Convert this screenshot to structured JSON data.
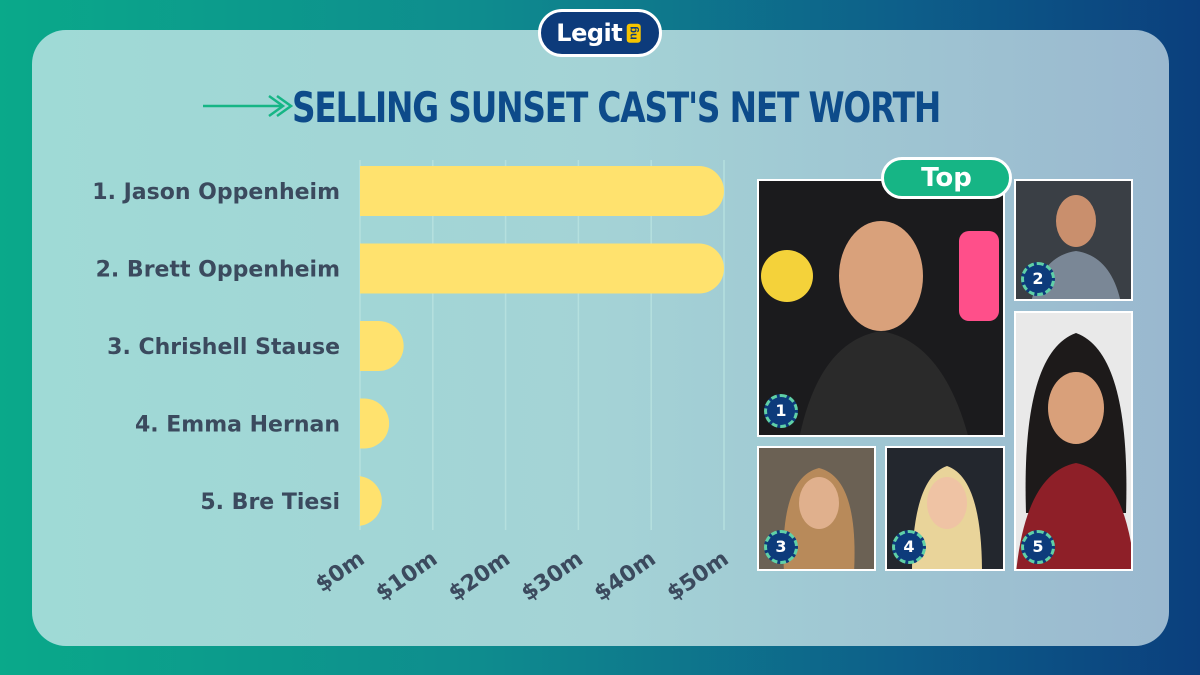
{
  "brand": {
    "logo_text": "Legit",
    "logo_badge": "ng"
  },
  "header": {
    "title": "SELLING SUNSET CAST'S NET WORTH"
  },
  "photos": {
    "tag": "Top",
    "badges": [
      "1",
      "2",
      "3",
      "4",
      "5"
    ]
  },
  "colors": {
    "bar": "#ffe26e",
    "title": "#0d4b8a",
    "accent_green": "#16b585",
    "logo_bg": "#0d3b7b"
  },
  "chart_data": {
    "type": "bar",
    "orientation": "horizontal",
    "categories": [
      "1. Jason Oppenheim",
      "2. Brett Oppenheim",
      "3. Chrishell Stause",
      "4. Emma Hernan",
      "5. Bre Tiesi"
    ],
    "values": [
      50,
      50,
      6,
      4,
      3
    ],
    "unit": "million USD",
    "xlim": [
      0,
      50
    ],
    "xticks": [
      "$0m",
      "$10m",
      "$20m",
      "$30m",
      "$40m",
      "$50m"
    ],
    "grid": true,
    "title": "SELLING SUNSET CAST'S NET WORTH"
  }
}
